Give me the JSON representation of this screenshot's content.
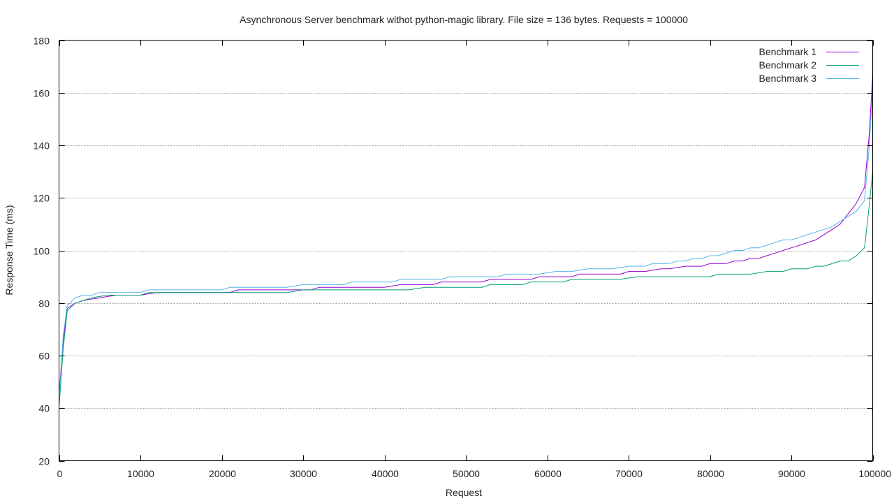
{
  "chart_data": {
    "type": "line",
    "title": "Asynchronous Server benchmark withot python-magic library. File size = 136 bytes. Requests = 100000",
    "xlabel": "Request",
    "ylabel": "Response Time (ms)",
    "xlim": [
      0,
      100000
    ],
    "ylim": [
      20,
      180
    ],
    "x_ticks": [
      0,
      10000,
      20000,
      30000,
      40000,
      50000,
      60000,
      70000,
      80000,
      90000,
      100000
    ],
    "y_ticks": [
      20,
      40,
      60,
      80,
      100,
      120,
      140,
      160,
      180
    ],
    "grid": "horizontal",
    "legend_position": "top-right",
    "series": [
      {
        "name": "Benchmark 1",
        "color": "#9400d3",
        "points": [
          [
            0,
            45
          ],
          [
            500,
            65
          ],
          [
            1000,
            78
          ],
          [
            2000,
            80
          ],
          [
            3000,
            81
          ],
          [
            5000,
            82
          ],
          [
            7000,
            83
          ],
          [
            10000,
            83
          ],
          [
            12000,
            84
          ],
          [
            20000,
            84
          ],
          [
            21000,
            84
          ],
          [
            22000,
            85
          ],
          [
            29000,
            85
          ],
          [
            31000,
            85
          ],
          [
            32000,
            86
          ],
          [
            40000,
            86
          ],
          [
            42000,
            87
          ],
          [
            46000,
            87
          ],
          [
            47000,
            88
          ],
          [
            52000,
            88
          ],
          [
            53000,
            89
          ],
          [
            58000,
            89
          ],
          [
            59000,
            90
          ],
          [
            63000,
            90
          ],
          [
            64000,
            91
          ],
          [
            69000,
            91
          ],
          [
            70000,
            92
          ],
          [
            72000,
            92
          ],
          [
            74000,
            93
          ],
          [
            75000,
            93
          ],
          [
            77000,
            94
          ],
          [
            79000,
            94
          ],
          [
            80000,
            95
          ],
          [
            82000,
            95
          ],
          [
            83000,
            96
          ],
          [
            84000,
            96
          ],
          [
            85000,
            97
          ],
          [
            86000,
            97
          ],
          [
            87000,
            98
          ],
          [
            88000,
            99
          ],
          [
            89000,
            100
          ],
          [
            90000,
            101
          ],
          [
            91000,
            102
          ],
          [
            92000,
            103
          ],
          [
            93000,
            104
          ],
          [
            94000,
            106
          ],
          [
            95000,
            108
          ],
          [
            96000,
            110
          ],
          [
            97000,
            114
          ],
          [
            98000,
            118
          ],
          [
            99000,
            124
          ],
          [
            99600,
            145
          ],
          [
            100000,
            167
          ]
        ]
      },
      {
        "name": "Benchmark 2",
        "color": "#009e73",
        "points": [
          [
            0,
            40
          ],
          [
            500,
            62
          ],
          [
            1000,
            77
          ],
          [
            2000,
            80
          ],
          [
            3000,
            81
          ],
          [
            4000,
            82
          ],
          [
            6000,
            83
          ],
          [
            10000,
            83
          ],
          [
            11000,
            84
          ],
          [
            20000,
            84
          ],
          [
            28000,
            84
          ],
          [
            30000,
            85
          ],
          [
            43000,
            85
          ],
          [
            45000,
            86
          ],
          [
            52000,
            86
          ],
          [
            53000,
            87
          ],
          [
            57000,
            87
          ],
          [
            58000,
            88
          ],
          [
            62000,
            88
          ],
          [
            63000,
            89
          ],
          [
            69000,
            89
          ],
          [
            71000,
            90
          ],
          [
            80000,
            90
          ],
          [
            81000,
            91
          ],
          [
            85000,
            91
          ],
          [
            87000,
            92
          ],
          [
            89000,
            92
          ],
          [
            90000,
            93
          ],
          [
            92000,
            93
          ],
          [
            93000,
            94
          ],
          [
            94000,
            94
          ],
          [
            96000,
            96
          ],
          [
            97000,
            96
          ],
          [
            98000,
            98
          ],
          [
            99000,
            101
          ],
          [
            99500,
            115
          ],
          [
            100000,
            130
          ]
        ]
      },
      {
        "name": "Benchmark 3",
        "color": "#56b4e9",
        "points": [
          [
            0,
            42
          ],
          [
            500,
            67
          ],
          [
            1000,
            79
          ],
          [
            2000,
            82
          ],
          [
            3000,
            83
          ],
          [
            4000,
            83
          ],
          [
            5000,
            84
          ],
          [
            10000,
            84
          ],
          [
            11000,
            85
          ],
          [
            20000,
            85
          ],
          [
            21000,
            86
          ],
          [
            28000,
            86
          ],
          [
            30000,
            87
          ],
          [
            35000,
            87
          ],
          [
            36000,
            88
          ],
          [
            41000,
            88
          ],
          [
            42000,
            89
          ],
          [
            47000,
            89
          ],
          [
            48000,
            90
          ],
          [
            54000,
            90
          ],
          [
            55000,
            91
          ],
          [
            59000,
            91
          ],
          [
            61000,
            92
          ],
          [
            63000,
            92
          ],
          [
            65000,
            93
          ],
          [
            68000,
            93
          ],
          [
            70000,
            94
          ],
          [
            72000,
            94
          ],
          [
            73000,
            95
          ],
          [
            75000,
            95
          ],
          [
            76000,
            96
          ],
          [
            77000,
            96
          ],
          [
            78000,
            97
          ],
          [
            79000,
            97
          ],
          [
            80000,
            98
          ],
          [
            81000,
            98
          ],
          [
            82000,
            99
          ],
          [
            83000,
            100
          ],
          [
            84000,
            100
          ],
          [
            85000,
            101
          ],
          [
            86000,
            101
          ],
          [
            87000,
            102
          ],
          [
            88000,
            103
          ],
          [
            89000,
            104
          ],
          [
            90000,
            104
          ],
          [
            91000,
            105
          ],
          [
            92000,
            106
          ],
          [
            93000,
            107
          ],
          [
            94000,
            108
          ],
          [
            95000,
            109
          ],
          [
            96000,
            111
          ],
          [
            97000,
            113
          ],
          [
            98000,
            115
          ],
          [
            99000,
            119
          ],
          [
            99600,
            140
          ],
          [
            100000,
            162
          ]
        ]
      }
    ]
  }
}
